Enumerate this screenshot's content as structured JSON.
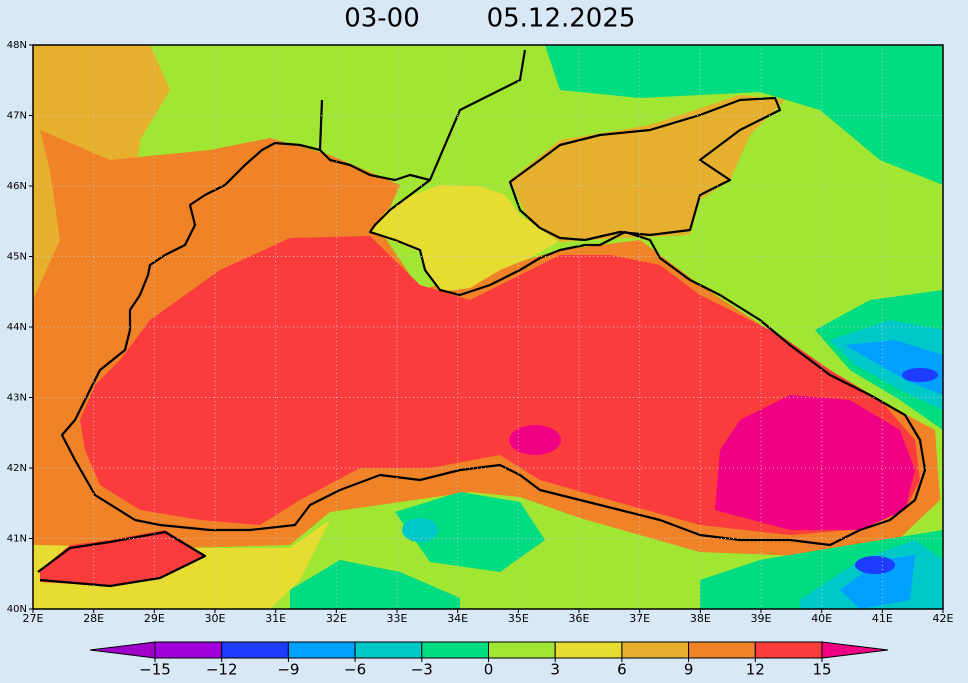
{
  "header": {
    "time": "03-00",
    "date": "05.12.2025"
  },
  "map": {
    "lon_labels": [
      "27E",
      "28E",
      "29E",
      "30E",
      "31E",
      "32E",
      "33E",
      "34E",
      "35E",
      "36E",
      "37E",
      "38E",
      "39E",
      "40E",
      "41E",
      "42E"
    ],
    "lat_labels": [
      "40N",
      "41N",
      "42N",
      "43N",
      "44N",
      "45N",
      "46N",
      "47N",
      "48N"
    ]
  },
  "colorbar": {
    "ticks": [
      {
        "value": -15,
        "label": "−15"
      },
      {
        "value": -12,
        "label": "−12"
      },
      {
        "value": -9,
        "label": "−9"
      },
      {
        "value": -6,
        "label": "−6"
      },
      {
        "value": -3,
        "label": "−3"
      },
      0,
      3,
      6,
      9,
      12,
      15
    ],
    "colors": [
      "#a000c8",
      "#a000dc",
      "#1e3cff",
      "#00a0ff",
      "#00c8c8",
      "#00dc82",
      "#a0e632",
      "#e6dc32",
      "#e6af2d",
      "#f08228",
      "#fa3c3c",
      "#f00082"
    ]
  }
}
